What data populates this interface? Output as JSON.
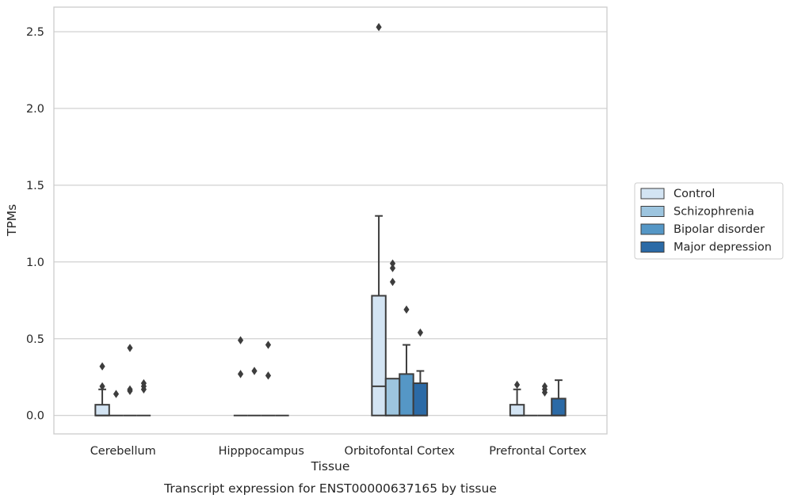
{
  "chart_data": {
    "type": "box",
    "title": "",
    "caption": "Transcript expression for ENST00000637165 by tissue",
    "xlabel": "Tissue",
    "ylabel": "TPMs",
    "ylim": [
      -0.12,
      2.66
    ],
    "yticks": [
      "0.0",
      "0.5",
      "1.0",
      "1.5",
      "2.0",
      "2.5"
    ],
    "grid": "horizontal",
    "legend_position": "right",
    "categories": [
      "Cerebellum",
      "Hipppocampus",
      "Orbitofontal Cortex",
      "Prefrontal Cortex"
    ],
    "series": [
      {
        "name": "Control",
        "color": "#d3e4f3",
        "boxes": [
          {
            "q1": 0.0,
            "median": 0.0,
            "q3": 0.07,
            "whisker_low": 0.0,
            "whisker_high": 0.17,
            "outliers": [
              0.19,
              0.32
            ]
          },
          {
            "q1": 0.0,
            "median": 0.0,
            "q3": 0.0,
            "whisker_low": 0.0,
            "whisker_high": 0.0,
            "outliers": [
              0.27,
              0.49
            ]
          },
          {
            "q1": 0.0,
            "median": 0.19,
            "q3": 0.78,
            "whisker_low": 0.0,
            "whisker_high": 1.3,
            "outliers": [
              2.53
            ]
          },
          {
            "q1": 0.0,
            "median": 0.0,
            "q3": 0.07,
            "whisker_low": 0.0,
            "whisker_high": 0.17,
            "outliers": [
              0.2
            ]
          }
        ]
      },
      {
        "name": "Schizophrenia",
        "color": "#9dc5df",
        "boxes": [
          {
            "q1": 0.0,
            "median": 0.0,
            "q3": 0.0,
            "whisker_low": 0.0,
            "whisker_high": 0.0,
            "outliers": [
              0.14
            ]
          },
          {
            "q1": 0.0,
            "median": 0.0,
            "q3": 0.0,
            "whisker_low": 0.0,
            "whisker_high": 0.0,
            "outliers": [
              0.29
            ]
          },
          {
            "q1": 0.0,
            "median": 0.0,
            "q3": 0.24,
            "whisker_low": 0.0,
            "whisker_high": 0.24,
            "outliers": [
              0.87,
              0.96,
              0.99
            ]
          },
          {
            "q1": 0.0,
            "median": 0.0,
            "q3": 0.0,
            "whisker_low": 0.0,
            "whisker_high": 0.0,
            "outliers": []
          }
        ]
      },
      {
        "name": "Bipolar disorder",
        "color": "#5597c6",
        "boxes": [
          {
            "q1": 0.0,
            "median": 0.0,
            "q3": 0.0,
            "whisker_low": 0.0,
            "whisker_high": 0.0,
            "outliers": [
              0.16,
              0.17,
              0.44
            ]
          },
          {
            "q1": 0.0,
            "median": 0.0,
            "q3": 0.0,
            "whisker_low": 0.0,
            "whisker_high": 0.0,
            "outliers": [
              0.26,
              0.46
            ]
          },
          {
            "q1": 0.0,
            "median": 0.0,
            "q3": 0.27,
            "whisker_low": 0.0,
            "whisker_high": 0.46,
            "outliers": [
              0.69
            ]
          },
          {
            "q1": 0.0,
            "median": 0.0,
            "q3": 0.0,
            "whisker_low": 0.0,
            "whisker_high": 0.0,
            "outliers": [
              0.15,
              0.17,
              0.19
            ]
          }
        ]
      },
      {
        "name": "Major depression",
        "color": "#2b6aa6",
        "boxes": [
          {
            "q1": 0.0,
            "median": 0.0,
            "q3": 0.0,
            "whisker_low": 0.0,
            "whisker_high": 0.0,
            "outliers": [
              0.17,
              0.19,
              0.21
            ]
          },
          {
            "q1": 0.0,
            "median": 0.0,
            "q3": 0.0,
            "whisker_low": 0.0,
            "whisker_high": 0.0,
            "outliers": []
          },
          {
            "q1": 0.0,
            "median": 0.0,
            "q3": 0.21,
            "whisker_low": 0.0,
            "whisker_high": 0.29,
            "outliers": [
              0.54
            ]
          },
          {
            "q1": 0.0,
            "median": 0.0,
            "q3": 0.11,
            "whisker_low": 0.0,
            "whisker_high": 0.23,
            "outliers": []
          }
        ]
      }
    ]
  },
  "colors": {
    "frame": "#cccccc",
    "grid": "#cccccc",
    "box_edge": "#3d3d3d",
    "text": "#262626"
  }
}
